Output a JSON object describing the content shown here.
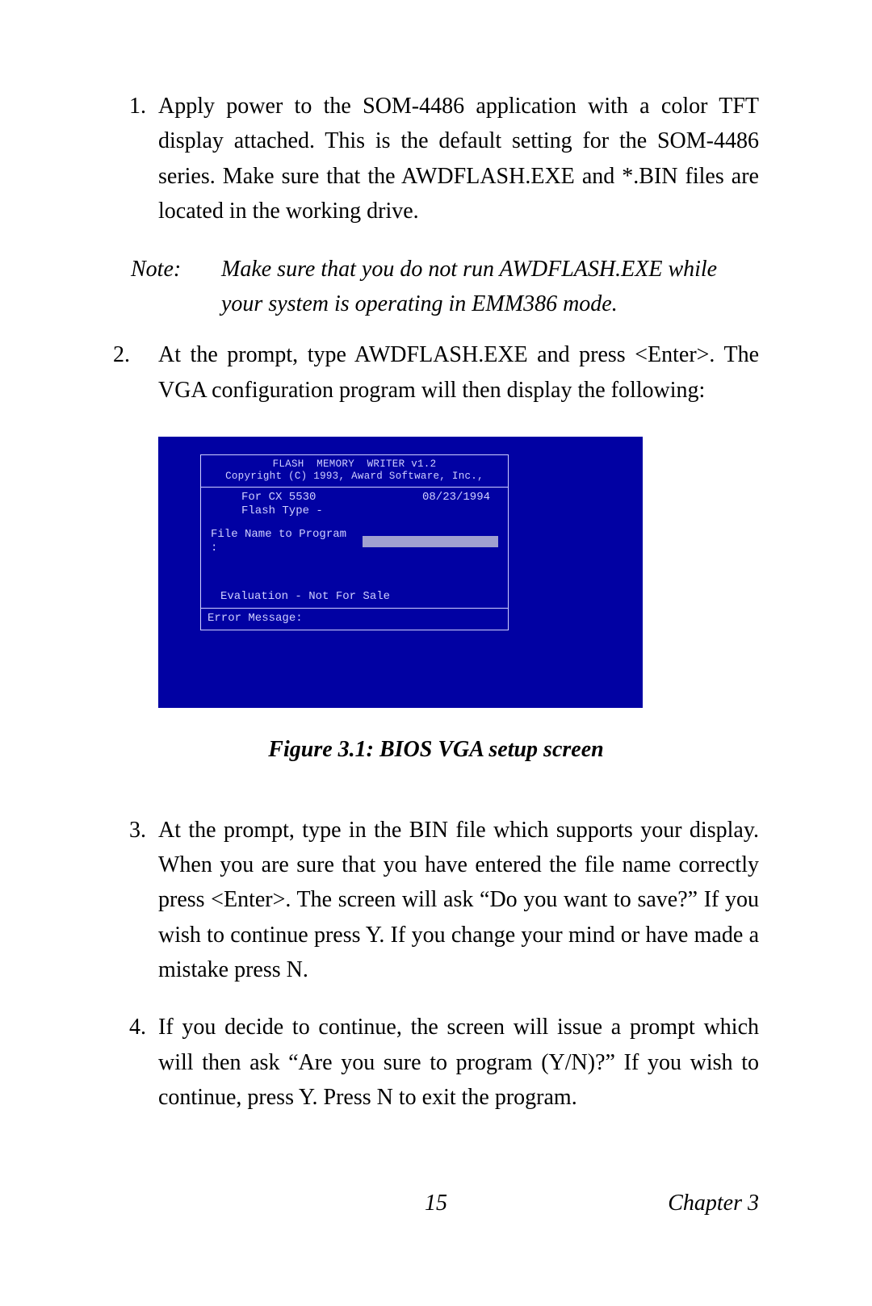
{
  "steps": {
    "s1": {
      "num": "1.",
      "text": "Apply power to the SOM-4486 application with a color TFT display attached. This is the default setting for the SOM-4486 series. Make sure that the AWDFLASH.EXE and *.BIN files are located in the working drive."
    },
    "s2": {
      "num": "2.",
      "text": "At the prompt, type AWDFLASH.EXE and press <Enter>. The VGA configuration program will then display the following:"
    },
    "s3": {
      "num": "3.",
      "text": "At the prompt, type in the BIN file which supports your display. When you are sure that you have entered the file name correctly press <Enter>. The screen will ask “Do you want to save?” If you wish to continue press Y. If you change your mind or have made a mistake press N."
    },
    "s4": {
      "num": "4.",
      "text": "If you decide to continue, the screen will issue a prompt which will then ask  “Are you sure to program (Y/N)?”  If you wish to continue, press Y. Press N to exit the program."
    }
  },
  "note": {
    "label": "Note:",
    "text": "Make sure that you do not run AWDFLASH.EXE while your system is operating in EMM386 mode."
  },
  "bios": {
    "colors": {
      "bg": "#0101a3",
      "fg": "#d0d0ff",
      "input_bg": "#a0a0d0"
    },
    "title_l1": "FLASH  MEMORY  WRITER v1.2",
    "title_l2": "Copyright (C) 1993, Award Software, Inc.,",
    "for_line": "For CX 5530",
    "date": "08/23/1994",
    "flash_type": "Flash Type -",
    "file_label": "File Name to Program :",
    "eval": "Evaluation - Not For Sale",
    "error": "Error Message:"
  },
  "figure_caption": "Figure 3.1: BIOS VGA setup screen",
  "footer": {
    "page": "15",
    "chapter": "Chapter 3"
  }
}
